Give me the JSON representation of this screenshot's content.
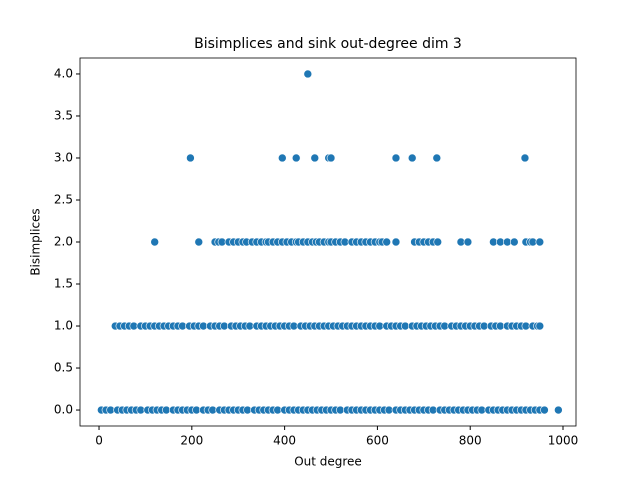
{
  "chart_data": {
    "type": "scatter",
    "title": "Bisimplices and sink out-degree dim 3",
    "xlabel": "Out degree",
    "ylabel": "Bisimplices",
    "color": "#1f77b4",
    "xlim": [
      -41,
      1028
    ],
    "ylim": [
      -0.19,
      4.19
    ],
    "xticks": [
      0,
      200,
      400,
      600,
      800,
      1000
    ],
    "yticks": [
      {
        "value": 0,
        "label": "0.0"
      },
      {
        "value": 0.5,
        "label": "0.5"
      },
      {
        "value": 1,
        "label": "1.0"
      },
      {
        "value": 1.5,
        "label": "1.5"
      },
      {
        "value": 2,
        "label": "2.0"
      },
      {
        "value": 2.5,
        "label": "2.5"
      },
      {
        "value": 3,
        "label": "3.0"
      },
      {
        "value": 3.5,
        "label": "3.5"
      },
      {
        "value": 4,
        "label": "4.0"
      }
    ],
    "points": [
      [
        450,
        4
      ],
      [
        197,
        3
      ],
      [
        395,
        3
      ],
      [
        425,
        3
      ],
      [
        465,
        3
      ],
      [
        495,
        3
      ],
      [
        500,
        3
      ],
      [
        640,
        3
      ],
      [
        675,
        3
      ],
      [
        728,
        3
      ],
      [
        918,
        3
      ],
      [
        120,
        2
      ],
      [
        215,
        2
      ],
      [
        250,
        2
      ],
      [
        258,
        2
      ],
      [
        265,
        2
      ],
      [
        280,
        2
      ],
      [
        290,
        2
      ],
      [
        300,
        2
      ],
      [
        310,
        2
      ],
      [
        318,
        2
      ],
      [
        330,
        2
      ],
      [
        340,
        2
      ],
      [
        350,
        2
      ],
      [
        360,
        2
      ],
      [
        365,
        2
      ],
      [
        375,
        2
      ],
      [
        385,
        2
      ],
      [
        395,
        2
      ],
      [
        405,
        2
      ],
      [
        415,
        2
      ],
      [
        425,
        2
      ],
      [
        430,
        2
      ],
      [
        440,
        2
      ],
      [
        450,
        2
      ],
      [
        460,
        2
      ],
      [
        468,
        2
      ],
      [
        475,
        2
      ],
      [
        485,
        2
      ],
      [
        495,
        2
      ],
      [
        500,
        2
      ],
      [
        510,
        2
      ],
      [
        520,
        2
      ],
      [
        530,
        2
      ],
      [
        545,
        2
      ],
      [
        555,
        2
      ],
      [
        565,
        2
      ],
      [
        575,
        2
      ],
      [
        585,
        2
      ],
      [
        595,
        2
      ],
      [
        605,
        2
      ],
      [
        610,
        2
      ],
      [
        620,
        2
      ],
      [
        640,
        2
      ],
      [
        680,
        2
      ],
      [
        690,
        2
      ],
      [
        700,
        2
      ],
      [
        710,
        2
      ],
      [
        720,
        2
      ],
      [
        730,
        2
      ],
      [
        780,
        2
      ],
      [
        795,
        2
      ],
      [
        850,
        2
      ],
      [
        865,
        2
      ],
      [
        880,
        2
      ],
      [
        895,
        2
      ],
      [
        920,
        2
      ],
      [
        930,
        2
      ],
      [
        935,
        2
      ],
      [
        950,
        2
      ],
      [
        35,
        1
      ],
      [
        45,
        1
      ],
      [
        55,
        1
      ],
      [
        65,
        1
      ],
      [
        75,
        1
      ],
      [
        90,
        1
      ],
      [
        100,
        1
      ],
      [
        110,
        1
      ],
      [
        120,
        1
      ],
      [
        130,
        1
      ],
      [
        140,
        1
      ],
      [
        150,
        1
      ],
      [
        160,
        1
      ],
      [
        170,
        1
      ],
      [
        180,
        1
      ],
      [
        195,
        1
      ],
      [
        205,
        1
      ],
      [
        215,
        1
      ],
      [
        225,
        1
      ],
      [
        240,
        1
      ],
      [
        250,
        1
      ],
      [
        260,
        1
      ],
      [
        270,
        1
      ],
      [
        285,
        1
      ],
      [
        295,
        1
      ],
      [
        305,
        1
      ],
      [
        315,
        1
      ],
      [
        325,
        1
      ],
      [
        340,
        1
      ],
      [
        350,
        1
      ],
      [
        360,
        1
      ],
      [
        370,
        1
      ],
      [
        380,
        1
      ],
      [
        390,
        1
      ],
      [
        400,
        1
      ],
      [
        410,
        1
      ],
      [
        420,
        1
      ],
      [
        435,
        1
      ],
      [
        445,
        1
      ],
      [
        455,
        1
      ],
      [
        465,
        1
      ],
      [
        475,
        1
      ],
      [
        485,
        1
      ],
      [
        495,
        1
      ],
      [
        505,
        1
      ],
      [
        515,
        1
      ],
      [
        525,
        1
      ],
      [
        535,
        1
      ],
      [
        545,
        1
      ],
      [
        555,
        1
      ],
      [
        565,
        1
      ],
      [
        575,
        1
      ],
      [
        585,
        1
      ],
      [
        595,
        1
      ],
      [
        605,
        1
      ],
      [
        620,
        1
      ],
      [
        630,
        1
      ],
      [
        640,
        1
      ],
      [
        650,
        1
      ],
      [
        660,
        1
      ],
      [
        675,
        1
      ],
      [
        685,
        1
      ],
      [
        695,
        1
      ],
      [
        705,
        1
      ],
      [
        715,
        1
      ],
      [
        725,
        1
      ],
      [
        735,
        1
      ],
      [
        745,
        1
      ],
      [
        760,
        1
      ],
      [
        770,
        1
      ],
      [
        780,
        1
      ],
      [
        790,
        1
      ],
      [
        800,
        1
      ],
      [
        810,
        1
      ],
      [
        820,
        1
      ],
      [
        830,
        1
      ],
      [
        845,
        1
      ],
      [
        855,
        1
      ],
      [
        865,
        1
      ],
      [
        880,
        1
      ],
      [
        890,
        1
      ],
      [
        900,
        1
      ],
      [
        910,
        1
      ],
      [
        920,
        1
      ],
      [
        935,
        1
      ],
      [
        945,
        1
      ],
      [
        950,
        1
      ],
      [
        5,
        0
      ],
      [
        15,
        0
      ],
      [
        25,
        0
      ],
      [
        40,
        0
      ],
      [
        50,
        0
      ],
      [
        60,
        0
      ],
      [
        70,
        0
      ],
      [
        80,
        0
      ],
      [
        90,
        0
      ],
      [
        105,
        0
      ],
      [
        115,
        0
      ],
      [
        125,
        0
      ],
      [
        135,
        0
      ],
      [
        145,
        0
      ],
      [
        160,
        0
      ],
      [
        170,
        0
      ],
      [
        180,
        0
      ],
      [
        190,
        0
      ],
      [
        200,
        0
      ],
      [
        210,
        0
      ],
      [
        225,
        0
      ],
      [
        235,
        0
      ],
      [
        245,
        0
      ],
      [
        260,
        0
      ],
      [
        270,
        0
      ],
      [
        280,
        0
      ],
      [
        290,
        0
      ],
      [
        300,
        0
      ],
      [
        310,
        0
      ],
      [
        320,
        0
      ],
      [
        335,
        0
      ],
      [
        345,
        0
      ],
      [
        355,
        0
      ],
      [
        365,
        0
      ],
      [
        375,
        0
      ],
      [
        385,
        0
      ],
      [
        400,
        0
      ],
      [
        410,
        0
      ],
      [
        420,
        0
      ],
      [
        430,
        0
      ],
      [
        440,
        0
      ],
      [
        450,
        0
      ],
      [
        460,
        0
      ],
      [
        470,
        0
      ],
      [
        480,
        0
      ],
      [
        490,
        0
      ],
      [
        500,
        0
      ],
      [
        510,
        0
      ],
      [
        520,
        0
      ],
      [
        535,
        0
      ],
      [
        545,
        0
      ],
      [
        555,
        0
      ],
      [
        565,
        0
      ],
      [
        575,
        0
      ],
      [
        585,
        0
      ],
      [
        595,
        0
      ],
      [
        605,
        0
      ],
      [
        615,
        0
      ],
      [
        625,
        0
      ],
      [
        640,
        0
      ],
      [
        650,
        0
      ],
      [
        660,
        0
      ],
      [
        670,
        0
      ],
      [
        680,
        0
      ],
      [
        690,
        0
      ],
      [
        700,
        0
      ],
      [
        710,
        0
      ],
      [
        720,
        0
      ],
      [
        735,
        0
      ],
      [
        745,
        0
      ],
      [
        755,
        0
      ],
      [
        765,
        0
      ],
      [
        775,
        0
      ],
      [
        785,
        0
      ],
      [
        795,
        0
      ],
      [
        805,
        0
      ],
      [
        815,
        0
      ],
      [
        825,
        0
      ],
      [
        840,
        0
      ],
      [
        850,
        0
      ],
      [
        860,
        0
      ],
      [
        870,
        0
      ],
      [
        880,
        0
      ],
      [
        890,
        0
      ],
      [
        900,
        0
      ],
      [
        910,
        0
      ],
      [
        920,
        0
      ],
      [
        930,
        0
      ],
      [
        940,
        0
      ],
      [
        950,
        0
      ],
      [
        960,
        0
      ],
      [
        990,
        0
      ]
    ]
  }
}
